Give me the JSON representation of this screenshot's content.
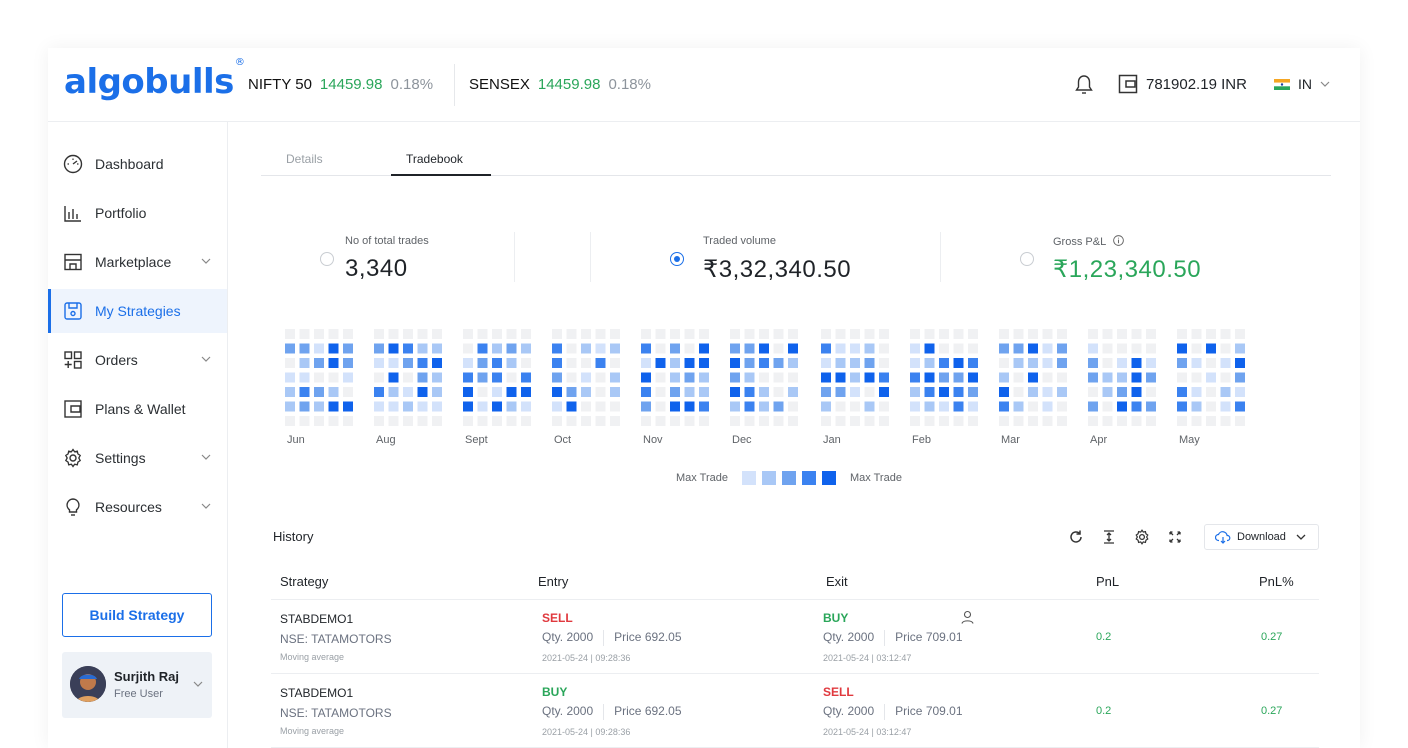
{
  "brand": {
    "logo": "algobulls",
    "reg": "®"
  },
  "header": {
    "tickers": [
      {
        "name": "NIFTY 50",
        "value": "14459.98",
        "pct": "0.18%"
      },
      {
        "name": "SENSEX",
        "value": "14459.98",
        "pct": "0.18%"
      }
    ],
    "balance": "781902.19 INR",
    "region": "IN"
  },
  "sidebar": {
    "items": [
      {
        "label": "Dashboard",
        "icon": "speedometer-icon"
      },
      {
        "label": "Portfolio",
        "icon": "bar-chart-icon"
      },
      {
        "label": "Marketplace",
        "icon": "store-icon"
      },
      {
        "label": "My Strategies",
        "icon": "save-icon"
      },
      {
        "label": "Orders",
        "icon": "grid-plus-icon"
      },
      {
        "label": "Plans & Wallet",
        "icon": "wallet-icon"
      },
      {
        "label": "Settings",
        "icon": "gear-icon"
      },
      {
        "label": "Resources",
        "icon": "bulb-icon"
      }
    ],
    "build_label": "Build Strategy",
    "user": {
      "name": "Surjith Raj",
      "role": "Free User"
    }
  },
  "tabs": {
    "details": "Details",
    "tradebook": "Tradebook"
  },
  "stats": {
    "total_trades": {
      "label": "No of total trades",
      "value": "3,340"
    },
    "volume": {
      "label": "Traded volume",
      "value": "₹3,32,340.50"
    },
    "gross": {
      "label": "Gross P&L",
      "value": "₹1,23,340.50"
    }
  },
  "heatmap": {
    "months": [
      "Jun",
      "Aug",
      "Sept",
      "Oct",
      "Nov",
      "Dec",
      "Jan",
      "Feb",
      "Mar",
      "Apr",
      "May"
    ],
    "legend_left": "Max Trade",
    "legend_right": "Max Trade",
    "colors": [
      "#f0f1f3",
      "#d3e2fb",
      "#a9c8f6",
      "#6fa3ef",
      "#3b82f0",
      "#0f62ec"
    ]
  },
  "history": {
    "title": "History",
    "download": "Download",
    "columns": [
      "Strategy",
      "Entry",
      "Exit",
      "PnL",
      "PnL%"
    ],
    "rows": [
      {
        "strategy": "STABDEMO1",
        "exchange": "NSE: TATAMOTORS",
        "note": "Moving average",
        "entry_side": "SELL",
        "entry_qty": "Qty. 2000",
        "entry_price": "Price 692.05",
        "entry_ts": "2021-05-24 | 09:28:36",
        "exit_side": "BUY",
        "exit_qty": "Qty. 2000",
        "exit_price": "Price 709.01",
        "exit_ts": "2021-05-24 | 03:12:47",
        "pnl": "0.2",
        "pnl_pct": "0.27"
      },
      {
        "strategy": "STABDEMO1",
        "exchange": "NSE: TATAMOTORS",
        "note": "Moving average",
        "entry_side": "BUY",
        "entry_qty": "Qty. 2000",
        "entry_price": "Price 692.05",
        "entry_ts": "2021-05-24 | 09:28:36",
        "exit_side": "SELL",
        "exit_qty": "Qty. 2000",
        "exit_price": "Price 709.01",
        "exit_ts": "2021-05-24 | 03:12:47",
        "pnl": "0.2",
        "pnl_pct": "0.27"
      }
    ]
  }
}
